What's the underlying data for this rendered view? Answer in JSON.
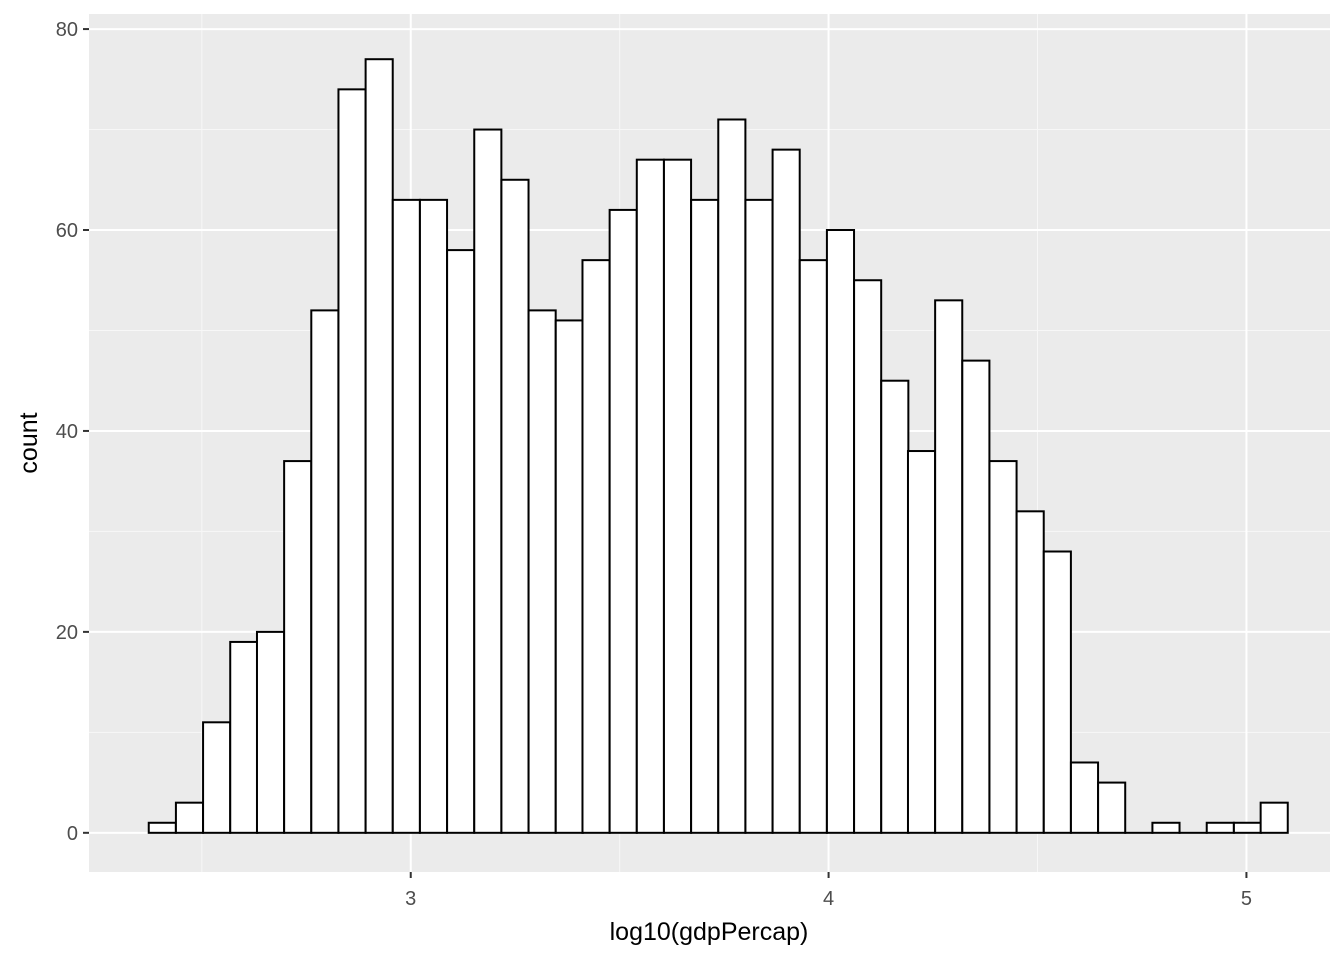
{
  "chart_data": {
    "type": "bar",
    "subtype": "histogram",
    "title": "",
    "xlabel": "log10(gdpPercap)",
    "ylabel": "count",
    "xlim": [
      2.23,
      5.2
    ],
    "ylim": [
      -3.9,
      81.5
    ],
    "x_ticks": [
      3,
      4,
      5
    ],
    "x_tick_labels": [
      "3",
      "4",
      "5"
    ],
    "y_ticks": [
      0,
      20,
      40,
      60,
      80
    ],
    "y_tick_labels": [
      "0",
      "20",
      "40",
      "60",
      "80"
    ],
    "bins": {
      "left_edges": [
        2.373,
        2.438,
        2.503,
        2.568,
        2.632,
        2.697,
        2.762,
        2.827,
        2.892,
        2.957,
        3.022,
        3.087,
        3.152,
        3.217,
        3.282,
        3.347,
        3.411,
        3.476,
        3.541,
        3.606,
        3.671,
        3.736,
        3.801,
        3.866,
        3.931,
        3.996,
        4.061,
        4.126,
        4.19,
        4.255,
        4.32,
        4.385,
        4.45,
        4.515,
        4.58,
        4.645,
        4.71,
        4.775,
        4.84,
        4.905,
        4.97,
        5.034
      ],
      "width": 0.0649
    },
    "values": [
      1,
      3,
      11,
      19,
      20,
      37,
      52,
      74,
      77,
      63,
      63,
      58,
      70,
      65,
      52,
      51,
      57,
      62,
      67,
      67,
      63,
      71,
      63,
      68,
      57,
      60,
      55,
      45,
      38,
      53,
      47,
      37,
      32,
      28,
      7,
      5,
      0,
      1,
      0,
      1,
      1,
      3
    ],
    "grid": true,
    "legend": "none",
    "colors": {
      "panel_background": "#ebebeb",
      "grid_major": "#ffffff",
      "grid_minor": "#f7f7f7",
      "bar_fill": "#ffffff",
      "bar_outline": "#000000",
      "tick_label": "#4d4d4d",
      "tick_mark": "#333333",
      "axis_title": "#000000"
    }
  }
}
